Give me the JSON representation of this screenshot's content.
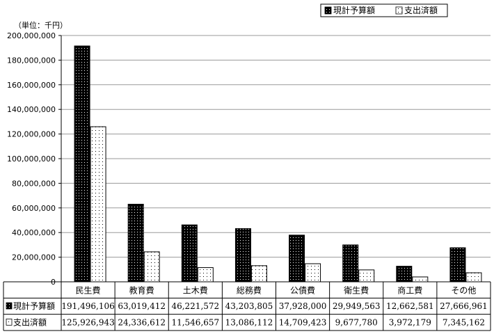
{
  "chart_data": {
    "type": "bar",
    "unit_label": "（単位：千円）",
    "categories": [
      "民生費",
      "教育費",
      "土木費",
      "総務費",
      "公債費",
      "衛生費",
      "商工費",
      "その他"
    ],
    "series": [
      {
        "name": "現計予算額",
        "values": [
          191496106,
          63019412,
          46221572,
          43203805,
          37928000,
          29949563,
          12662581,
          27666961
        ],
        "labels": [
          "191,496,106",
          "63,019,412",
          "46,221,572",
          "43,203,805",
          "37,928,000",
          "29,949,563",
          "12,662,581",
          "27,666,961"
        ]
      },
      {
        "name": "支出済額",
        "values": [
          125926943,
          24336612,
          11546657,
          13086112,
          14709423,
          9677780,
          3972179,
          7345162
        ],
        "labels": [
          "125,926,943",
          "24,336,612",
          "11,546,657",
          "13,086,112",
          "14,709,423",
          "9,677,780",
          "3,972,179",
          "7,345,162"
        ]
      }
    ],
    "yticks": [
      "0",
      "20,000,000",
      "40,000,000",
      "60,000,000",
      "80,000,000",
      "100,000,000",
      "120,000,000",
      "140,000,000",
      "160,000,000",
      "180,000,000",
      "200,000,000"
    ],
    "ylim": [
      0,
      200000000
    ],
    "grid": true,
    "legend_position": "top-right"
  }
}
